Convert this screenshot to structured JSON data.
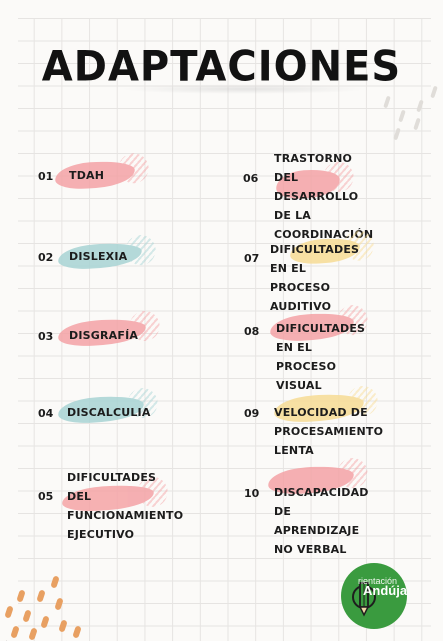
{
  "title": "ADAPTACIONES",
  "items_left": [
    {
      "num": "01",
      "label": "TDAH",
      "color": "#f4a3a6"
    },
    {
      "num": "02",
      "label": "DISLEXIA",
      "color": "#a8d4d4"
    },
    {
      "num": "03",
      "label": "DISGRAFÍA",
      "color": "#f4a3a6"
    },
    {
      "num": "04",
      "label": "DISCALCULIA",
      "color": "#a8d4d4"
    },
    {
      "num": "05",
      "label": "DIFICULTADES DEL\nFUNCIONAMIENTO\nEJECUTIVO",
      "color": "#f4a3a6"
    }
  ],
  "items_right": [
    {
      "num": "06",
      "label": "TRASTORNO DEL\nDESARROLLO DE LA\nCOORDINACIÓN",
      "color": "#f4a3a6"
    },
    {
      "num": "07",
      "label": "DIFICULTADES EN EL\nPROCESO AUDITIVO",
      "color": "#f7dc95"
    },
    {
      "num": "08",
      "label": "DIFICULTADES EN EL\nPROCESO VISUAL",
      "color": "#f4a3a6"
    },
    {
      "num": "09",
      "label": "VELOCIDAD DE\nPROCESAMIENTO LENTA",
      "color": "#f7dc95"
    },
    {
      "num": "10",
      "label": "DISCAPACIDAD DE\nAPRENDIZAJE NO VERBAL",
      "color": "#f4a3a6"
    }
  ],
  "logo": {
    "line1": "rientación",
    "line2": "Andújar",
    "color": "#3a9b3f"
  }
}
